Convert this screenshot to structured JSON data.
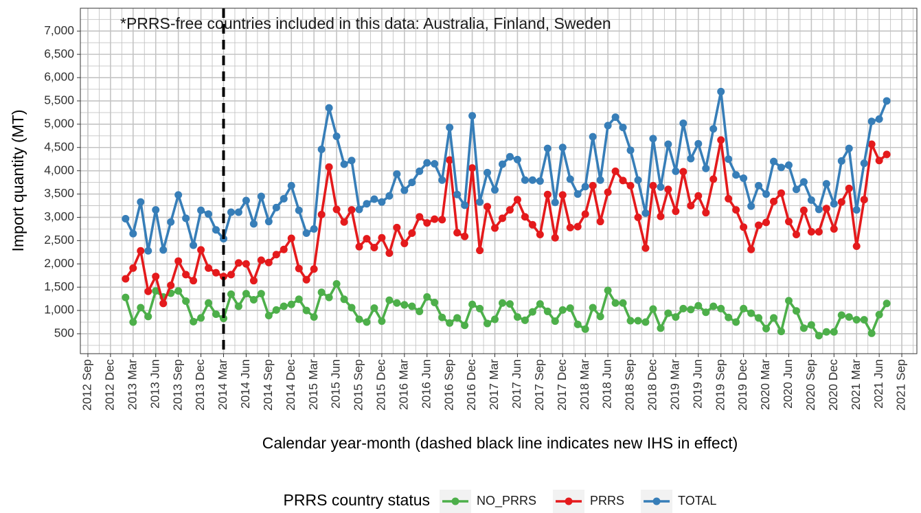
{
  "chart_data": {
    "type": "line",
    "annotation": "*PRRS-free countries included in this data: Australia, Finland, Sweden",
    "annotation_color": "#e41a1c",
    "x_label": "Calendar year-month (dashed black line indicates new IHS in effect)",
    "y_label": "Import quantity (MT)",
    "legend_title": "PRRS country status",
    "legend": "bottom",
    "grid": true,
    "vline": "2014 Mar",
    "x": [
      "2013 Feb",
      "2013 Mar",
      "2013 Apr",
      "2013 May",
      "2013 Jun",
      "2013 Jul",
      "2013 Aug",
      "2013 Sep",
      "2013 Oct",
      "2013 Nov",
      "2013 Dec",
      "2014 Jan",
      "2014 Feb",
      "2014 Mar",
      "2014 Apr",
      "2014 May",
      "2014 Jun",
      "2014 Jul",
      "2014 Aug",
      "2014 Sep",
      "2014 Oct",
      "2014 Nov",
      "2014 Dec",
      "2015 Jan",
      "2015 Feb",
      "2015 Mar",
      "2015 Apr",
      "2015 May",
      "2015 Jun",
      "2015 Jul",
      "2015 Aug",
      "2015 Sep",
      "2015 Oct",
      "2015 Nov",
      "2015 Dec",
      "2016 Jan",
      "2016 Feb",
      "2016 Mar",
      "2016 Apr",
      "2016 May",
      "2016 Jun",
      "2016 Jul",
      "2016 Aug",
      "2016 Sep",
      "2016 Oct",
      "2016 Nov",
      "2016 Dec",
      "2017 Jan",
      "2017 Feb",
      "2017 Mar",
      "2017 Apr",
      "2017 May",
      "2017 Jun",
      "2017 Jul",
      "2017 Aug",
      "2017 Sep",
      "2017 Oct",
      "2017 Nov",
      "2017 Dec",
      "2018 Jan",
      "2018 Feb",
      "2018 Mar",
      "2018 Apr",
      "2018 May",
      "2018 Jun",
      "2018 Jul",
      "2018 Aug",
      "2018 Sep",
      "2018 Oct",
      "2018 Nov",
      "2018 Dec",
      "2019 Jan",
      "2019 Feb",
      "2019 Mar",
      "2019 Apr",
      "2019 May",
      "2019 Jun",
      "2019 Jul",
      "2019 Aug",
      "2019 Sep",
      "2019 Oct",
      "2019 Nov",
      "2019 Dec",
      "2020 Jan",
      "2020 Feb",
      "2020 Mar",
      "2020 Apr",
      "2020 May",
      "2020 Jun",
      "2020 Jul",
      "2020 Aug",
      "2020 Sep",
      "2020 Oct",
      "2020 Nov",
      "2020 Dec",
      "2021 Jan",
      "2021 Feb",
      "2021 Mar",
      "2021 Apr",
      "2021 May",
      "2021 Jun",
      "2021 Jul"
    ],
    "xlim": [
      "2012 Aug",
      "2021 Nov"
    ],
    "xticks": [
      "2012 Sep",
      "2012 Dec",
      "2013 Mar",
      "2013 Jun",
      "2013 Sep",
      "2013 Dec",
      "2014 Mar",
      "2014 Jun",
      "2014 Sep",
      "2014 Dec",
      "2015 Mar",
      "2015 Jun",
      "2015 Sep",
      "2015 Dec",
      "2016 Mar",
      "2016 Jun",
      "2016 Sep",
      "2016 Dec",
      "2017 Mar",
      "2017 Jun",
      "2017 Sep",
      "2017 Dec",
      "2018 Mar",
      "2018 Jun",
      "2018 Sep",
      "2018 Dec",
      "2019 Mar",
      "2019 Jun",
      "2019 Sep",
      "2019 Dec",
      "2020 Mar",
      "2020 Jun",
      "2020 Sep",
      "2020 Dec",
      "2021 Mar",
      "2021 Jun",
      "2021 Sep"
    ],
    "ylim": [
      72,
      7490
    ],
    "yticks": [
      {
        "value": 500,
        "label": "500"
      },
      {
        "value": 1000,
        "label": "1,000"
      },
      {
        "value": 1500,
        "label": "1,500"
      },
      {
        "value": 2000,
        "label": "2,000"
      },
      {
        "value": 2500,
        "label": "2,500"
      },
      {
        "value": 3000,
        "label": "3,000"
      },
      {
        "value": 3500,
        "label": "3,500"
      },
      {
        "value": 4000,
        "label": "4,000"
      },
      {
        "value": 4500,
        "label": "4,500"
      },
      {
        "value": 5000,
        "label": "5,000"
      },
      {
        "value": 5500,
        "label": "5,500"
      },
      {
        "value": 6000,
        "label": "6,000"
      },
      {
        "value": 6500,
        "label": "6,500"
      },
      {
        "value": 7000,
        "label": "7,000"
      }
    ],
    "series": [
      {
        "name": "NO_PRRS",
        "color": "#4daf4a",
        "values": [
          1280,
          750,
          1060,
          870,
          1420,
          1290,
          1370,
          1420,
          1200,
          760,
          840,
          1160,
          920,
          830,
          1350,
          1090,
          1360,
          1230,
          1360,
          890,
          1010,
          1090,
          1130,
          1240,
          1000,
          860,
          1390,
          1280,
          1570,
          1240,
          1060,
          810,
          750,
          1050,
          770,
          1220,
          1160,
          1120,
          1090,
          980,
          1290,
          1170,
          850,
          730,
          840,
          680,
          1130,
          1040,
          720,
          810,
          1160,
          1140,
          860,
          790,
          970,
          1140,
          980,
          770,
          1010,
          1050,
          700,
          600,
          1060,
          870,
          1430,
          1160,
          1160,
          780,
          780,
          750,
          1030,
          620,
          940,
          860,
          1040,
          1020,
          1100,
          960,
          1090,
          1040,
          850,
          750,
          1040,
          940,
          840,
          610,
          840,
          550,
          1210,
          990,
          620,
          690,
          460,
          540,
          540,
          900,
          860,
          800,
          800,
          510,
          910,
          1150
        ]
      },
      {
        "name": "PRRS",
        "color": "#e41a1c",
        "values": [
          1680,
          1910,
          2280,
          1410,
          1730,
          1150,
          1540,
          2060,
          1770,
          1640,
          2300,
          1910,
          1810,
          1730,
          1770,
          2020,
          2000,
          1640,
          2080,
          2030,
          2200,
          2310,
          2550,
          1900,
          1660,
          1890,
          3060,
          4080,
          3170,
          2900,
          3160,
          2370,
          2540,
          2350,
          2560,
          2230,
          2780,
          2440,
          2660,
          3010,
          2880,
          2960,
          2950,
          4230,
          2670,
          2590,
          4060,
          2290,
          3230,
          2770,
          2980,
          3160,
          3380,
          3010,
          2840,
          2630,
          3490,
          2560,
          3480,
          2780,
          2800,
          3070,
          3680,
          2910,
          3540,
          3990,
          3790,
          3680,
          3000,
          2340,
          3680,
          3020,
          3600,
          3130,
          3980,
          3250,
          3460,
          3100,
          3820,
          4660,
          3400,
          3160,
          2790,
          2310,
          2830,
          2890,
          3340,
          3520,
          2910,
          2630,
          3150,
          2690,
          2690,
          3190,
          2750,
          3330,
          3620,
          2380,
          3380,
          4570,
          4220,
          4350
        ]
      },
      {
        "name": "TOTAL",
        "color": "#377eb8",
        "values": [
          2970,
          2650,
          3330,
          2280,
          3160,
          2300,
          2900,
          3480,
          2980,
          2400,
          3150,
          3070,
          2730,
          2540,
          3110,
          3110,
          3360,
          2860,
          3450,
          2910,
          3210,
          3400,
          3680,
          3150,
          2660,
          2750,
          4460,
          5350,
          4740,
          4140,
          4220,
          3170,
          3290,
          3390,
          3330,
          3460,
          3930,
          3580,
          3750,
          3990,
          4170,
          4150,
          3800,
          4930,
          3490,
          3260,
          5180,
          3330,
          3960,
          3590,
          4140,
          4300,
          4240,
          3800,
          3800,
          3780,
          4480,
          3320,
          4500,
          3820,
          3500,
          3660,
          4730,
          3800,
          4970,
          5150,
          4930,
          4440,
          3800,
          3090,
          4690,
          3650,
          4570,
          3990,
          5020,
          4260,
          4580,
          4050,
          4900,
          5700,
          4250,
          3910,
          3840,
          3240,
          3680,
          3500,
          4200,
          4070,
          4120,
          3600,
          3760,
          3370,
          3170,
          3720,
          3290,
          4210,
          4480,
          3160,
          4160,
          5060,
          5110,
          5500
        ]
      }
    ]
  }
}
